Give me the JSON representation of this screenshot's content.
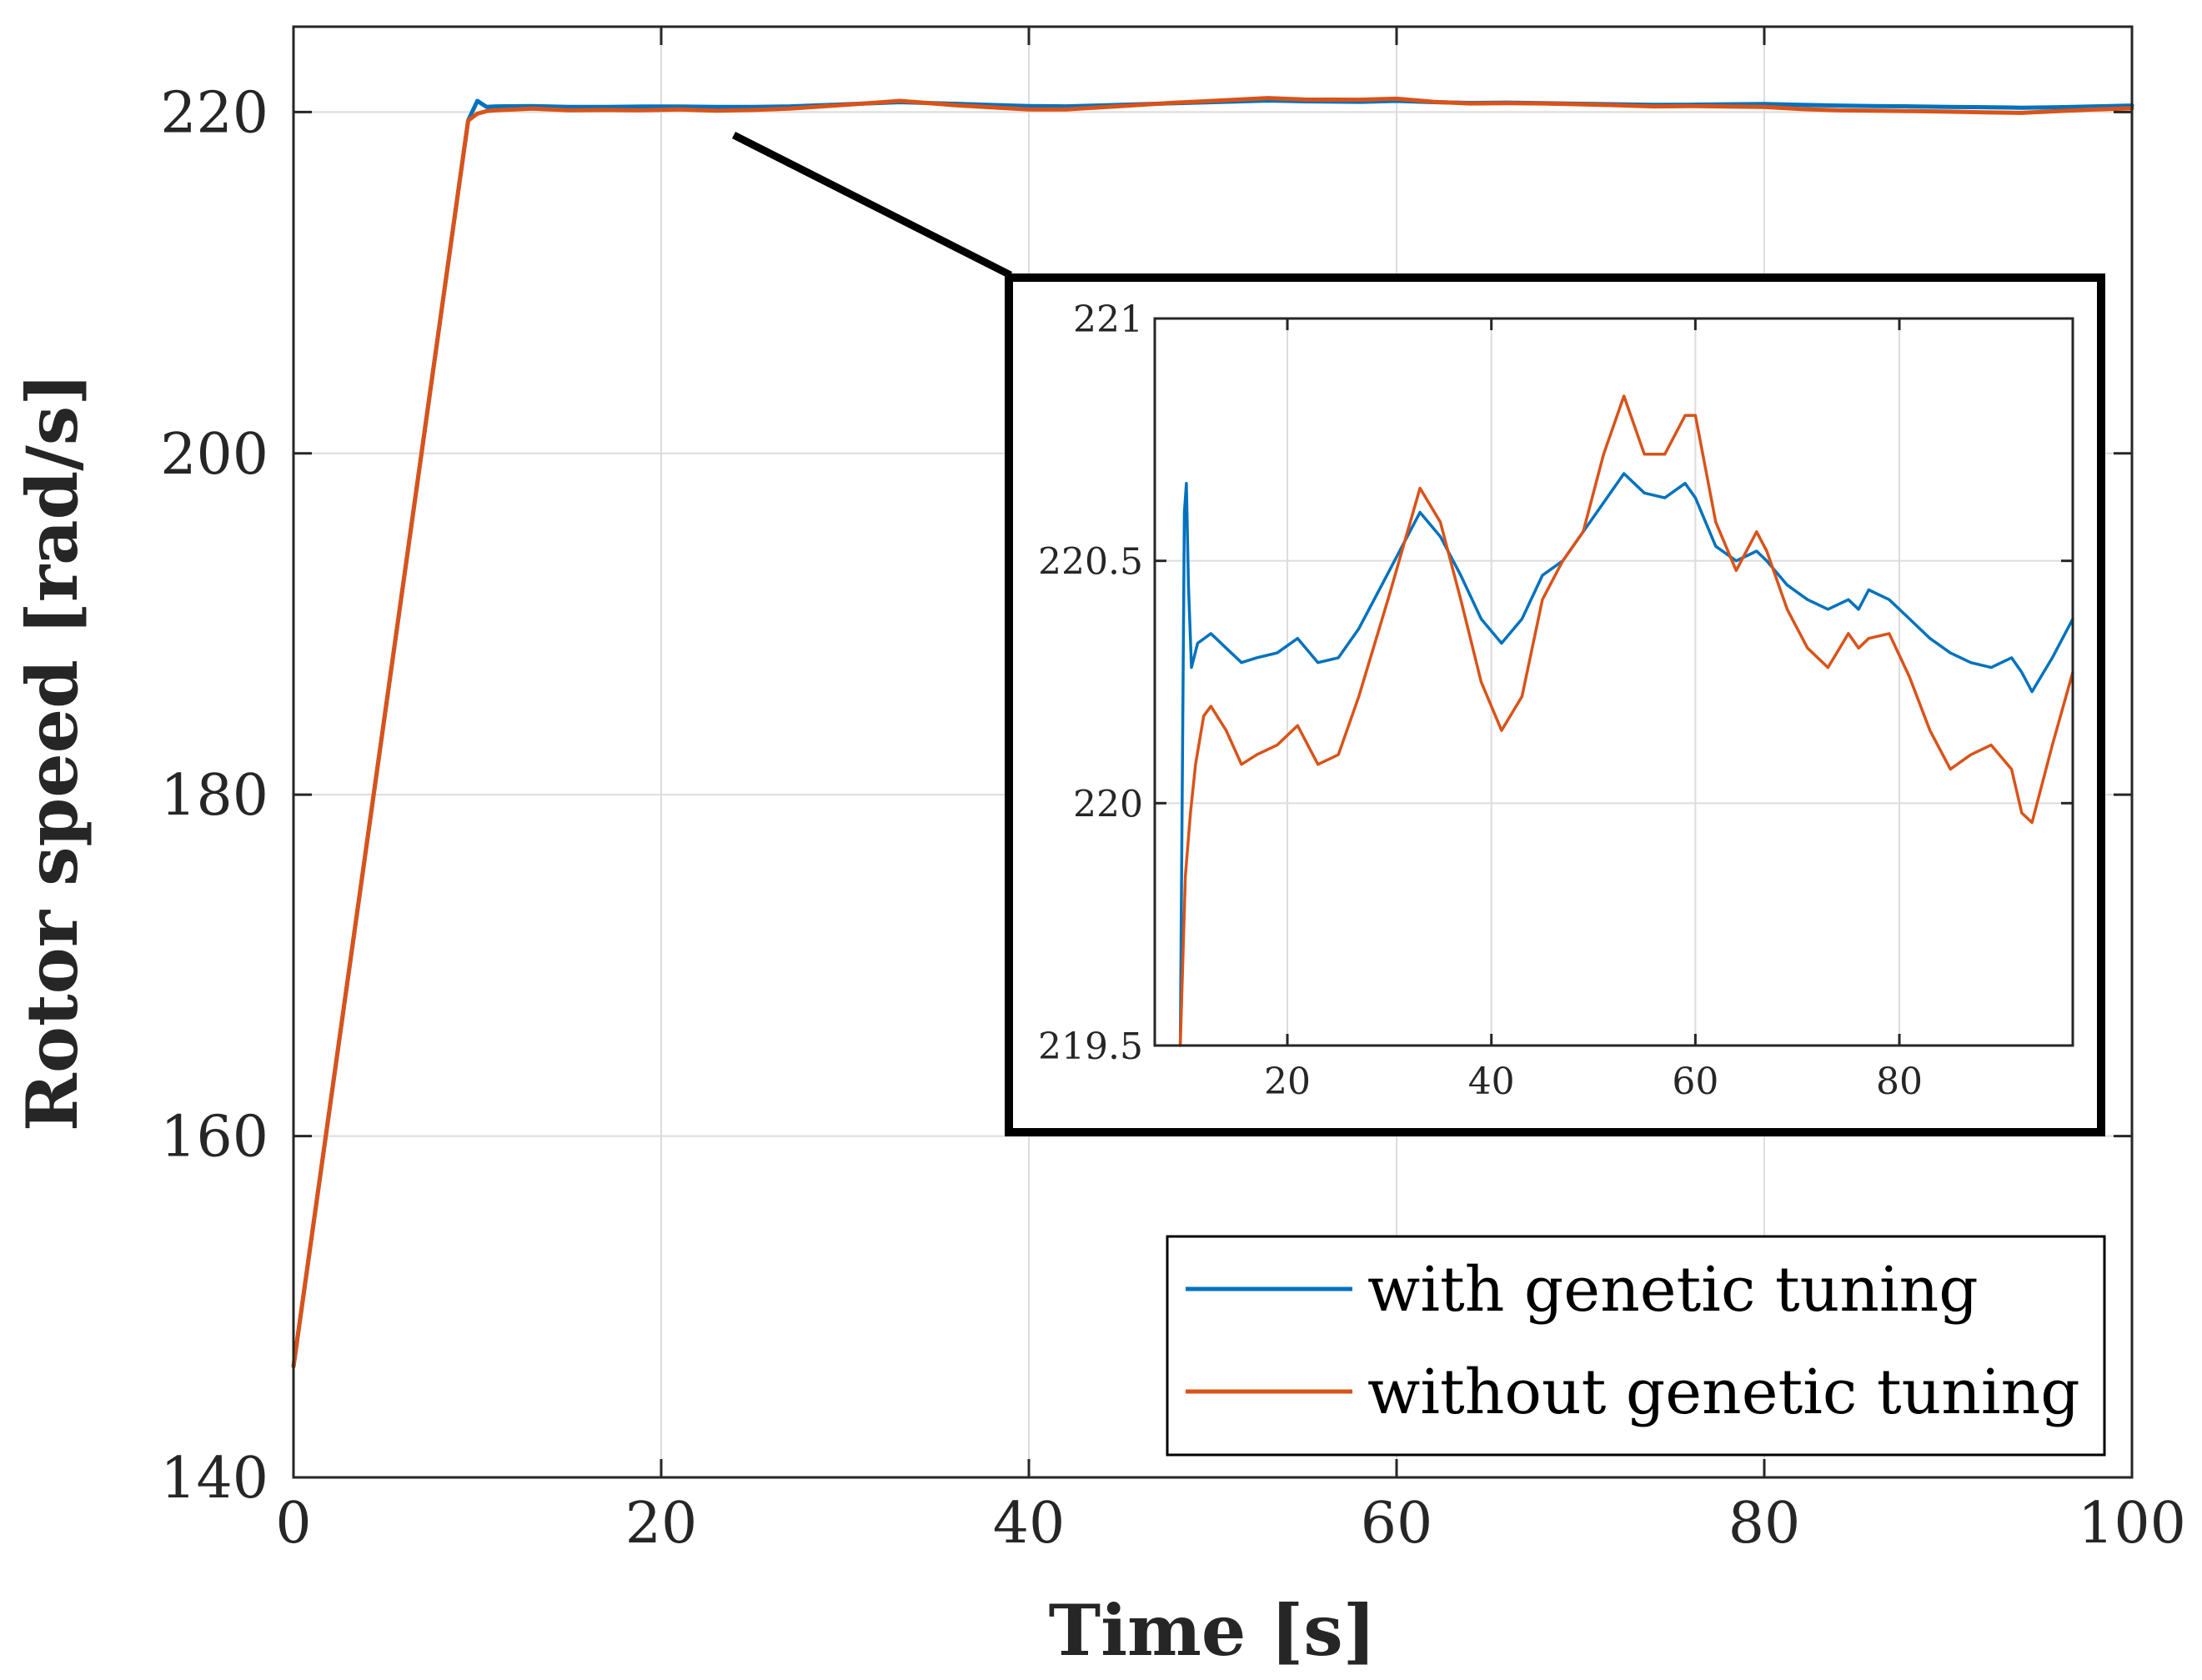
{
  "chart_data": [
    {
      "id": "main",
      "type": "line",
      "title": "",
      "xlabel": "Time [s]",
      "ylabel": "Rotor speed [rad/s]",
      "xlim": [
        0,
        100
      ],
      "ylim": [
        140,
        225
      ],
      "xticks": [
        0,
        20,
        40,
        60,
        80,
        100
      ],
      "yticks": [
        140,
        160,
        180,
        200,
        220
      ],
      "grid": true,
      "legend_position": "bottom-right",
      "series": [
        {
          "name": "with genetic tuning",
          "color": "#0072BD",
          "x": [
            0,
            9.5,
            10,
            10.5,
            11,
            13,
            15,
            17,
            19,
            21,
            23,
            25,
            27,
            30,
            33,
            36,
            40,
            42,
            45,
            48,
            50,
            53,
            55,
            58,
            60,
            62,
            64,
            66,
            68,
            70,
            72,
            74,
            76,
            78,
            80,
            82,
            84,
            86,
            88,
            90,
            92,
            94,
            96,
            98,
            100
          ],
          "y": [
            146.5,
            219.5,
            220.65,
            220.3,
            220.33,
            220.35,
            220.3,
            220.3,
            220.32,
            220.32,
            220.3,
            220.3,
            220.33,
            220.45,
            220.58,
            220.48,
            220.35,
            220.33,
            220.42,
            220.52,
            220.58,
            220.67,
            220.63,
            220.6,
            220.65,
            220.58,
            220.53,
            220.55,
            220.52,
            220.48,
            220.45,
            220.42,
            220.43,
            220.45,
            220.47,
            220.42,
            220.38,
            220.35,
            220.33,
            220.3,
            220.28,
            220.25,
            220.28,
            220.33,
            220.38
          ]
        },
        {
          "name": "without genetic tuning",
          "color": "#D95319",
          "x": [
            0,
            9.5,
            10,
            10.5,
            11,
            13,
            15,
            17,
            19,
            21,
            23,
            25,
            27,
            30,
            33,
            36,
            40,
            42,
            45,
            48,
            50,
            53,
            55,
            58,
            60,
            62,
            64,
            66,
            68,
            70,
            72,
            74,
            76,
            78,
            80,
            82,
            84,
            86,
            88,
            90,
            92,
            94,
            96,
            98,
            100
          ],
          "y": [
            146.5,
            219.5,
            219.9,
            220.05,
            220.1,
            220.2,
            220.1,
            220.12,
            220.1,
            220.15,
            220.08,
            220.12,
            220.2,
            220.42,
            220.65,
            220.4,
            220.15,
            220.15,
            220.35,
            220.55,
            220.65,
            220.82,
            220.73,
            220.72,
            220.78,
            220.6,
            220.5,
            220.52,
            220.5,
            220.45,
            220.4,
            220.33,
            220.35,
            220.32,
            220.3,
            220.18,
            220.1,
            220.08,
            220.05,
            220.02,
            219.98,
            219.95,
            220.05,
            220.15,
            220.22
          ]
        }
      ]
    },
    {
      "id": "inset",
      "type": "line",
      "title": "",
      "xlabel": "",
      "ylabel": "",
      "xlim": [
        7,
        97
      ],
      "ylim": [
        219.5,
        221
      ],
      "xticks": [
        20,
        40,
        60,
        80
      ],
      "yticks": [
        219.5,
        220,
        220.5,
        221
      ],
      "ytick_labels": [
        "219.5",
        "220",
        "220.5",
        "221"
      ],
      "grid": true,
      "series": [
        {
          "name": "with genetic tuning",
          "color": "#0072BD",
          "x": [
            9.5,
            9.9,
            10.1,
            10.3,
            10.6,
            11.2,
            12.5,
            14,
            15.5,
            17,
            19,
            21,
            23,
            25,
            27,
            30,
            33,
            35,
            37,
            39,
            41,
            43,
            45,
            47,
            49,
            51,
            53,
            55,
            57,
            59,
            60,
            62,
            64,
            66,
            67,
            69,
            71,
            73,
            75,
            76,
            77,
            79,
            81,
            83,
            85,
            87,
            89,
            91,
            92,
            93,
            95,
            97
          ],
          "y": [
            219.5,
            220.6,
            220.66,
            220.45,
            220.28,
            220.33,
            220.35,
            220.32,
            220.29,
            220.3,
            220.31,
            220.34,
            220.29,
            220.3,
            220.36,
            220.48,
            220.6,
            220.55,
            220.47,
            220.38,
            220.33,
            220.38,
            220.47,
            220.5,
            220.56,
            220.62,
            220.68,
            220.64,
            220.63,
            220.66,
            220.63,
            220.53,
            220.5,
            220.52,
            220.5,
            220.45,
            220.42,
            220.4,
            220.42,
            220.4,
            220.44,
            220.42,
            220.38,
            220.34,
            220.31,
            220.29,
            220.28,
            220.3,
            220.27,
            220.23,
            220.3,
            220.38
          ]
        },
        {
          "name": "without genetic tuning",
          "color": "#D95319",
          "x": [
            9.5,
            10,
            10.5,
            11,
            11.8,
            12.5,
            14,
            15.5,
            17,
            19,
            21,
            23,
            25,
            27,
            30,
            33,
            35,
            37,
            39,
            41,
            43,
            45,
            47,
            49,
            51,
            53,
            55,
            57,
            59,
            60,
            62,
            64,
            66,
            67,
            69,
            71,
            73,
            75,
            76,
            77,
            79,
            81,
            83,
            85,
            87,
            89,
            91,
            92,
            93,
            95,
            97
          ],
          "y": [
            219.5,
            219.85,
            219.98,
            220.08,
            220.18,
            220.2,
            220.15,
            220.08,
            220.1,
            220.12,
            220.16,
            220.08,
            220.1,
            220.22,
            220.43,
            220.65,
            220.58,
            220.42,
            220.25,
            220.15,
            220.22,
            220.42,
            220.5,
            220.56,
            220.72,
            220.84,
            220.72,
            220.72,
            220.8,
            220.8,
            220.58,
            220.48,
            220.56,
            220.52,
            220.4,
            220.32,
            220.28,
            220.35,
            220.32,
            220.34,
            220.35,
            220.26,
            220.15,
            220.07,
            220.1,
            220.12,
            220.07,
            219.98,
            219.96,
            220.12,
            220.27
          ]
        }
      ]
    }
  ]
}
